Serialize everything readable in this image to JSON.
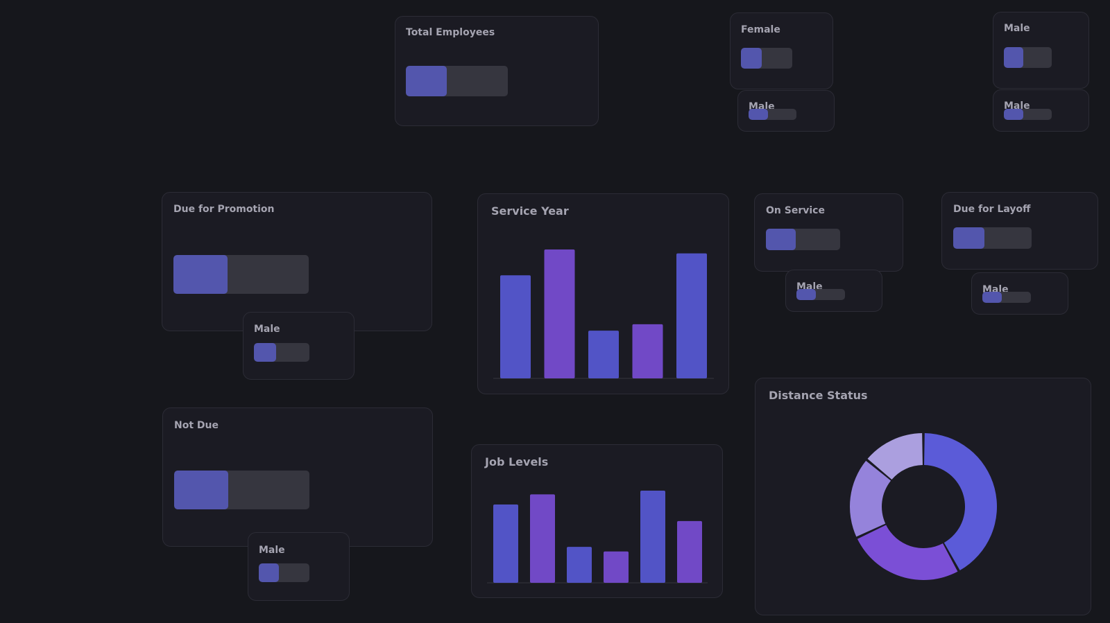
{
  "colors": {
    "background": "#16171c",
    "card": "#1b1b23",
    "track": "#36363f",
    "fill": "#5356ad",
    "blue": "#5254c6",
    "purple": "#7149c6"
  },
  "cards": {
    "total_employees": {
      "title": "Total Employees",
      "fill": 0.4
    },
    "female": {
      "title": "Female",
      "fill": 0.4
    },
    "male_top_center": {
      "title": "Male",
      "fill": 0.4
    },
    "male_top_right": {
      "title": "Male",
      "fill": 0.4
    },
    "male_top_right_small": {
      "title": "Male",
      "fill": 0.4
    },
    "due_for_promotion": {
      "title": "Due for Promotion",
      "fill": 0.4
    },
    "male_promotion": {
      "title": "Male",
      "fill": 0.4
    },
    "not_due": {
      "title": "Not Due",
      "fill": 0.4
    },
    "male_not_due": {
      "title": "Male",
      "fill": 0.4
    },
    "on_service": {
      "title": "On Service",
      "fill": 0.4
    },
    "male_on_service": {
      "title": "Male",
      "fill": 0.4
    },
    "due_for_layoff": {
      "title": "Due for Layoff",
      "fill": 0.4
    },
    "male_layoff": {
      "title": "Male",
      "fill": 0.4
    }
  },
  "charts": {
    "service_year": {
      "title": "Service Year"
    },
    "job_levels": {
      "title": "Job Levels"
    },
    "distance_status": {
      "title": "Distance Status"
    }
  },
  "chart_data": [
    {
      "type": "bar",
      "title": "Service Year",
      "categories": [
        "",
        "",
        "",
        "",
        ""
      ],
      "values": [
        80,
        100,
        37,
        42,
        97
      ],
      "ylim": [
        0,
        100
      ],
      "colors": [
        "#5254c6",
        "#7149c6",
        "#5254c6",
        "#7149c6",
        "#5254c6"
      ]
    },
    {
      "type": "bar",
      "title": "Job Levels",
      "categories": [
        "",
        "",
        "",
        "",
        "",
        ""
      ],
      "values": [
        85,
        96,
        39,
        34,
        100,
        67
      ],
      "ylim": [
        0,
        100
      ],
      "colors": [
        "#5254c6",
        "#7149c6",
        "#5254c6",
        "#7149c6",
        "#5254c6",
        "#7149c6"
      ]
    },
    {
      "type": "pie",
      "title": "Distance Status",
      "values": [
        42,
        26,
        18,
        14
      ],
      "colors": [
        "#5b5bd8",
        "#7b4fd6",
        "#9583db",
        "#ab9fdf"
      ]
    }
  ]
}
